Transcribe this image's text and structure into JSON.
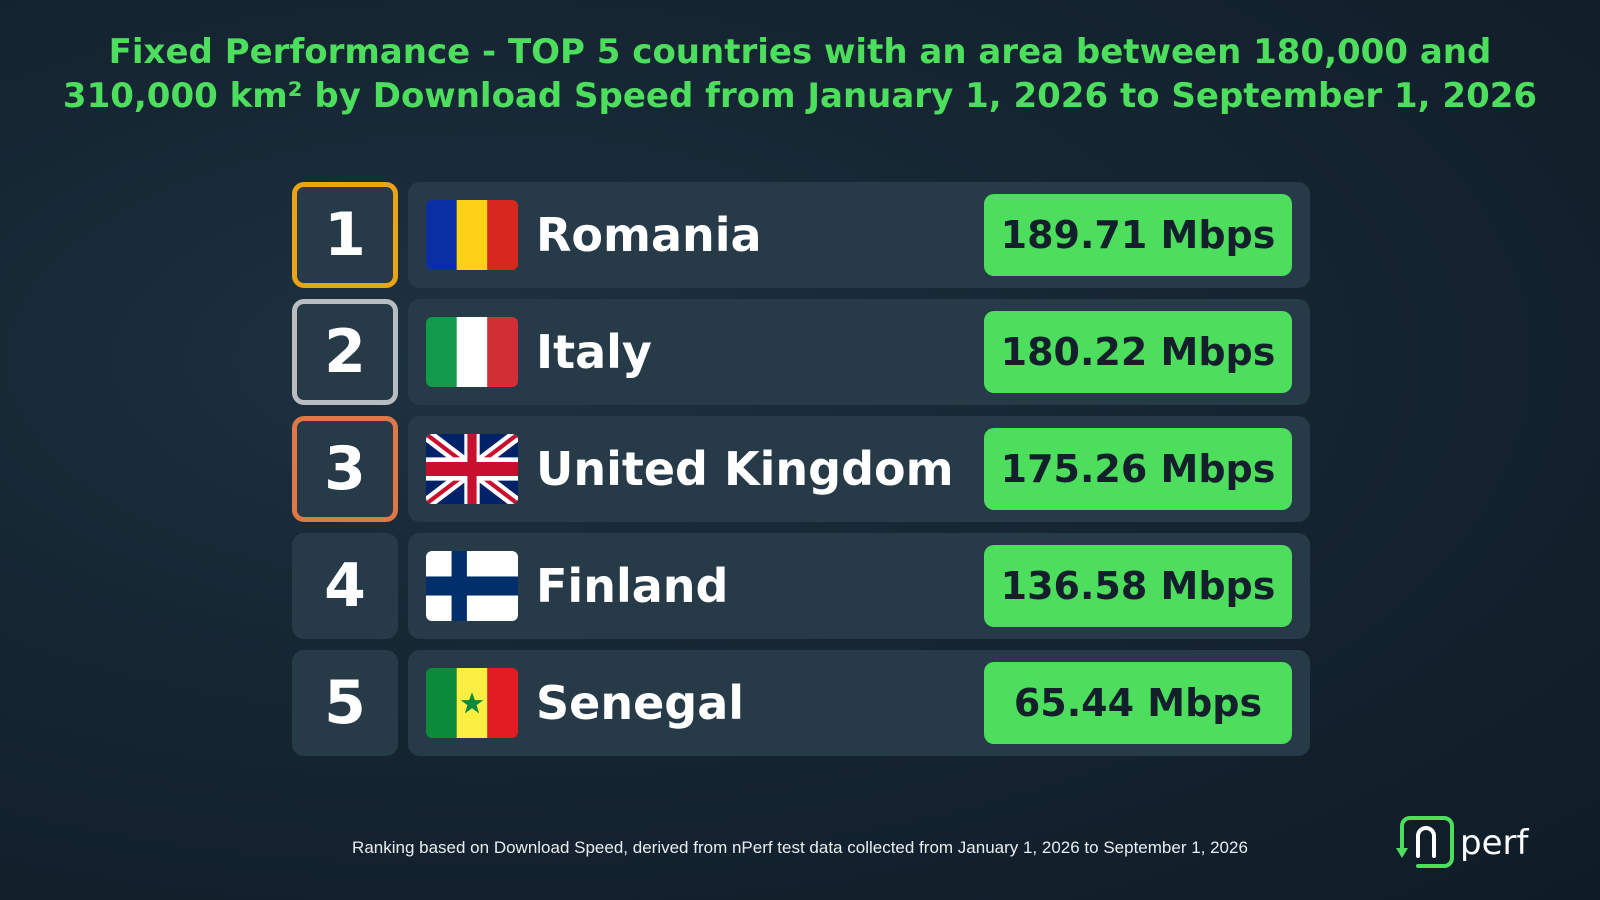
{
  "title": {
    "line1": "Fixed Performance - TOP 5 countries with an area between 180,000 and",
    "line2": "310,000 km² by Download Speed from January 1, 2026 to September 1, 2026"
  },
  "colors": {
    "accent": "#4cde5c",
    "card_bg": "#263a48",
    "rank_gold": "#e8a317",
    "rank_silver": "#b9bcc0",
    "rank_bronze": "#df7748"
  },
  "chart_data": {
    "type": "table",
    "title": "Fixed Performance - TOP 5 countries with an area between 180,000 and 310,000 km² by Download Speed from January 1, 2026 to September 1, 2026",
    "columns": [
      "rank",
      "country",
      "download_speed"
    ],
    "rows": [
      {
        "rank": "1",
        "country": "Romania",
        "flag": "romania-flag-icon",
        "value": 189.71,
        "label": "189.71 Mbps",
        "border": "#e8a317"
      },
      {
        "rank": "2",
        "country": "Italy",
        "flag": "italy-flag-icon",
        "value": 180.22,
        "label": "180.22 Mbps",
        "border": "#b9bcc0"
      },
      {
        "rank": "3",
        "country": "United Kingdom",
        "flag": "united-kingdom-flag-icon",
        "value": 175.26,
        "label": "175.26 Mbps",
        "border": "#df7748"
      },
      {
        "rank": "4",
        "country": "Finland",
        "flag": "finland-flag-icon",
        "value": 136.58,
        "label": "136.58 Mbps",
        "border": ""
      },
      {
        "rank": "5",
        "country": "Senegal",
        "flag": "senegal-flag-icon",
        "value": 65.44,
        "label": "65.44 Mbps",
        "border": ""
      }
    ]
  },
  "footnote": "Ranking based on Download Speed, derived from nPerf test data collected from January 1, 2026 to September 1, 2026",
  "logo": {
    "text": "nperf",
    "icon": "nperf-logo-icon"
  }
}
